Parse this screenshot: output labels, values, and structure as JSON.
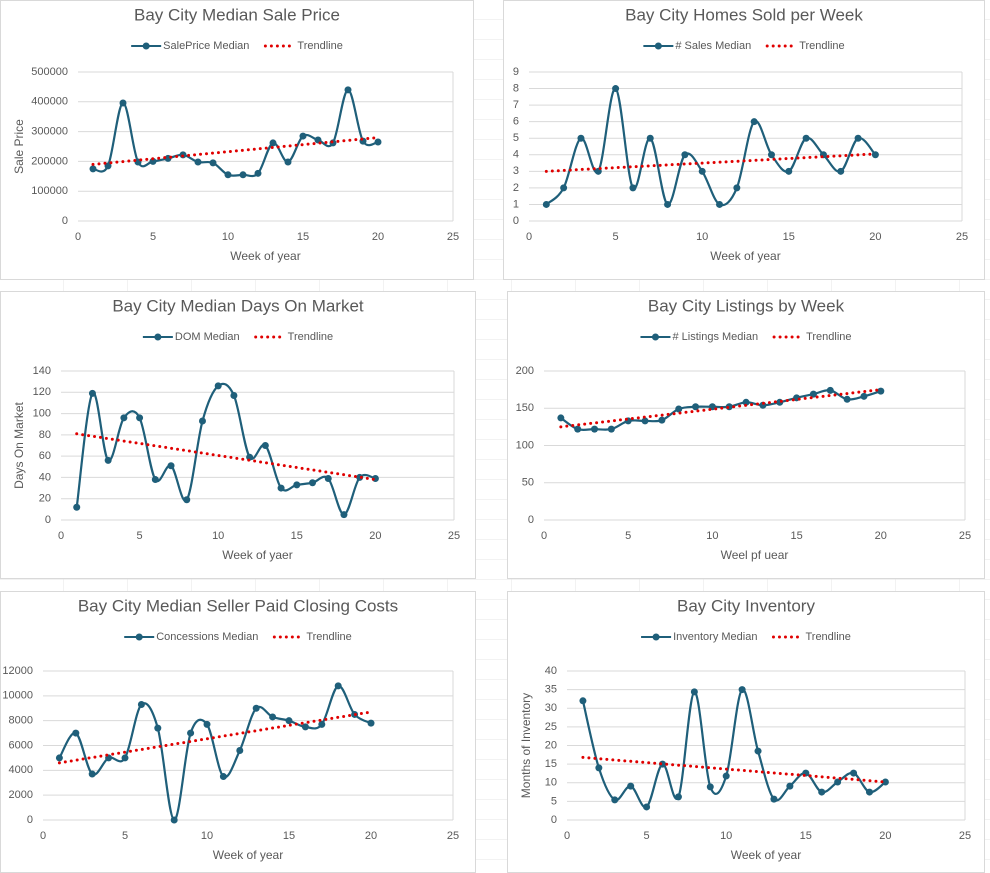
{
  "chart_data": [
    {
      "type": "line",
      "title": "Bay City Median Sale Price",
      "x_label": "Week of year",
      "y_label": "Sale Price",
      "xlim": [
        0,
        25
      ],
      "xticks": [
        0,
        5,
        10,
        15,
        20,
        25
      ],
      "ylim": [
        0,
        500000
      ],
      "yticks": [
        0,
        100000,
        200000,
        300000,
        400000,
        500000
      ],
      "grid": true,
      "series": [
        {
          "name": "SalePrice Median",
          "color": "#1f5f7a",
          "smooth": true,
          "markers": true,
          "x": [
            1,
            2,
            3,
            4,
            5,
            6,
            7,
            8,
            9,
            10,
            11,
            12,
            13,
            14,
            15,
            16,
            17,
            18,
            19,
            20
          ],
          "values": [
            175000,
            185000,
            396000,
            198000,
            200000,
            210000,
            222000,
            198000,
            195000,
            155000,
            155000,
            160000,
            262000,
            198000,
            285000,
            272000,
            262000,
            440000,
            268000,
            265000
          ]
        },
        {
          "name": "Trendline",
          "color": "#e00000",
          "line_style": "dotted",
          "x": [
            1,
            20
          ],
          "values": [
            190000,
            280000
          ]
        }
      ]
    },
    {
      "type": "line",
      "title": "Bay City Homes Sold per Week",
      "x_label": "Week of year",
      "xlim": [
        0,
        25
      ],
      "xticks": [
        0,
        5,
        10,
        15,
        20,
        25
      ],
      "ylim": [
        0,
        9
      ],
      "yticks": [
        0,
        1,
        2,
        3,
        4,
        5,
        6,
        7,
        8,
        9
      ],
      "grid": true,
      "series": [
        {
          "name": "# Sales Median",
          "color": "#1f5f7a",
          "smooth": true,
          "markers": true,
          "x": [
            1,
            2,
            3,
            4,
            5,
            6,
            7,
            8,
            9,
            10,
            11,
            12,
            13,
            14,
            15,
            16,
            17,
            18,
            19,
            20
          ],
          "values": [
            1,
            2,
            5,
            3,
            8,
            2,
            5,
            1,
            4,
            3,
            1,
            2,
            6,
            4,
            3,
            5,
            4,
            3,
            5,
            4
          ]
        },
        {
          "name": "Trendline",
          "color": "#e00000",
          "line_style": "dotted",
          "x": [
            1,
            20
          ],
          "values": [
            3,
            4.05
          ]
        }
      ]
    },
    {
      "type": "line",
      "title": "Bay City Median Days On Market",
      "x_label": "Week of yaer",
      "y_label": "Days On Market",
      "xlim": [
        0,
        25
      ],
      "xticks": [
        0,
        5,
        10,
        15,
        20,
        25
      ],
      "ylim": [
        0,
        140
      ],
      "yticks": [
        0,
        20,
        40,
        60,
        80,
        100,
        120,
        140
      ],
      "grid": true,
      "series": [
        {
          "name": "DOM Median",
          "color": "#1f5f7a",
          "smooth": true,
          "markers": true,
          "x": [
            1,
            2,
            3,
            4,
            5,
            6,
            7,
            8,
            9,
            10,
            11,
            12,
            13,
            14,
            15,
            16,
            17,
            18,
            19,
            20
          ],
          "values": [
            12,
            119,
            56,
            96,
            96,
            38,
            51,
            19,
            93,
            126,
            117,
            59,
            70,
            30,
            33,
            35,
            39,
            5,
            40,
            39
          ]
        },
        {
          "name": "Trendline",
          "color": "#e00000",
          "line_style": "dotted",
          "x": [
            1,
            20
          ],
          "values": [
            81,
            38
          ]
        }
      ]
    },
    {
      "type": "line",
      "title": "Bay City Listings by Week",
      "x_label": "Weel pf uear",
      "xlim": [
        0,
        25
      ],
      "xticks": [
        0,
        5,
        10,
        15,
        20,
        25
      ],
      "ylim": [
        0,
        200
      ],
      "yticks": [
        0,
        50,
        100,
        150,
        200
      ],
      "grid": true,
      "series": [
        {
          "name": "# Listings Median",
          "color": "#1f5f7a",
          "smooth": true,
          "markers": true,
          "x": [
            1,
            2,
            3,
            4,
            5,
            6,
            7,
            8,
            9,
            10,
            11,
            12,
            13,
            14,
            15,
            16,
            17,
            18,
            19,
            20
          ],
          "values": [
            137,
            122,
            122,
            122,
            133,
            133,
            134,
            149,
            152,
            152,
            152,
            158,
            154,
            158,
            164,
            169,
            174,
            162,
            166,
            173
          ]
        },
        {
          "name": "Trendline",
          "color": "#e00000",
          "line_style": "dotted",
          "x": [
            1,
            20
          ],
          "values": [
            125,
            175
          ]
        }
      ]
    },
    {
      "type": "line",
      "title": "Bay City Median Seller Paid Closing Costs",
      "x_label": "Week of year",
      "xlim": [
        0,
        25
      ],
      "xticks": [
        0,
        5,
        10,
        15,
        20,
        25
      ],
      "ylim": [
        0,
        12000
      ],
      "yticks": [
        0,
        2000,
        4000,
        6000,
        8000,
        10000,
        12000
      ],
      "grid": true,
      "series": [
        {
          "name": "Concessions Median",
          "color": "#1f5f7a",
          "smooth": true,
          "markers": true,
          "x": [
            1,
            2,
            3,
            4,
            5,
            6,
            7,
            8,
            9,
            10,
            11,
            12,
            13,
            14,
            15,
            16,
            17,
            18,
            19,
            20
          ],
          "values": [
            5000,
            7000,
            3700,
            5000,
            5000,
            9300,
            7400,
            0,
            7000,
            7700,
            3500,
            5600,
            9000,
            8300,
            8000,
            7500,
            7700,
            10800,
            8500,
            7800
          ]
        },
        {
          "name": "Trendline",
          "color": "#e00000",
          "line_style": "dotted",
          "x": [
            1,
            20
          ],
          "values": [
            4600,
            8700
          ]
        }
      ]
    },
    {
      "type": "line",
      "title": "Bay City Inventory",
      "x_label": "Week of year",
      "y_label": "Months of Inventory",
      "xlim": [
        0,
        25
      ],
      "xticks": [
        0,
        5,
        10,
        15,
        20,
        25
      ],
      "ylim": [
        0,
        40
      ],
      "yticks": [
        0,
        5,
        10,
        15,
        20,
        25,
        30,
        35,
        40
      ],
      "grid": true,
      "series": [
        {
          "name": "Inventory Median",
          "color": "#1f5f7a",
          "smooth": true,
          "markers": true,
          "x": [
            1,
            2,
            3,
            4,
            5,
            6,
            7,
            8,
            9,
            10,
            11,
            12,
            13,
            14,
            15,
            16,
            17,
            18,
            19,
            20
          ],
          "values": [
            32,
            14,
            5.4,
            9.1,
            3.5,
            15,
            6.2,
            34.4,
            8.9,
            11.8,
            35,
            18.5,
            5.6,
            9.1,
            12.6,
            7.5,
            10.2,
            12.6,
            7.5,
            10.2
          ]
        },
        {
          "name": "Trendline",
          "color": "#e00000",
          "line_style": "dotted",
          "x": [
            1,
            20
          ],
          "values": [
            16.8,
            10.2
          ]
        }
      ]
    }
  ]
}
